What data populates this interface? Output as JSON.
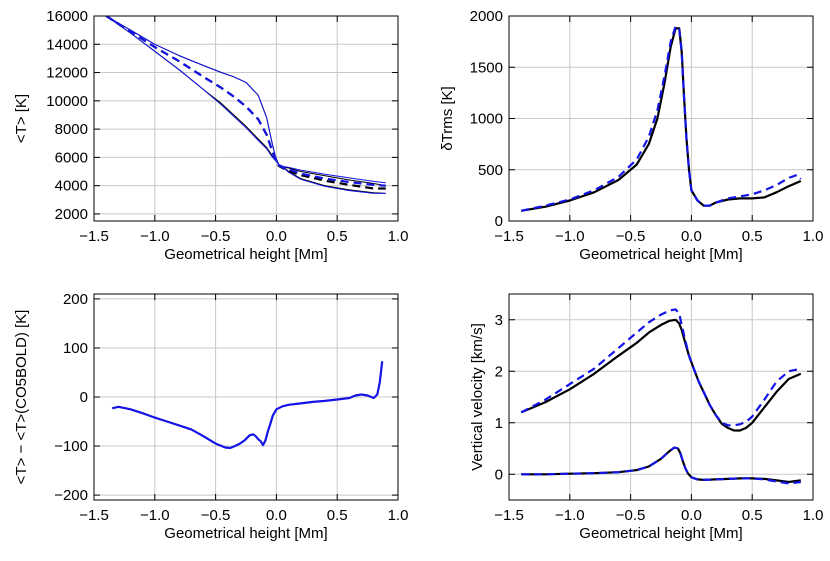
{
  "colors": {
    "black": "#000000",
    "blue": "#1414e6",
    "grid": "#c8c8c8"
  },
  "chart_data": [
    {
      "type": "line",
      "xlabel": "Geometrical height [Mm]",
      "ylabel": "<T> [K]",
      "xlim": [
        -1.5,
        1.0
      ],
      "ylim": [
        1500,
        16000
      ],
      "xticks": [
        -1.5,
        -1.0,
        -0.5,
        0.0,
        0.5,
        1.0
      ],
      "xtick_labels": [
        "−1.5",
        "−1.0",
        "−0.5",
        "0.0",
        "0.5",
        "1.0"
      ],
      "yticks": [
        2000,
        4000,
        6000,
        8000,
        10000,
        12000,
        14000,
        16000
      ],
      "ytick_labels": [
        "2000",
        "4000",
        "6000",
        "8000",
        "10000",
        "12000",
        "14000",
        "16000"
      ],
      "grid": true,
      "series": [
        {
          "color": "black",
          "style": "solid",
          "width": 1,
          "x": [
            -1.4,
            -1.2,
            -1.0,
            -0.8,
            -0.6,
            -0.45,
            -0.35,
            -0.25,
            -0.15,
            -0.08,
            -0.04,
            -0.01,
            0.02,
            0.06,
            0.1,
            0.2,
            0.4,
            0.6,
            0.8,
            0.9
          ],
          "y": [
            16000,
            15000,
            14000,
            13200,
            12500,
            12000,
            11700,
            11300,
            10400,
            8800,
            7200,
            6100,
            5450,
            5300,
            5250,
            5000,
            4700,
            4400,
            4150,
            4000
          ]
        },
        {
          "color": "black",
          "style": "solid",
          "width": 1,
          "x": [
            -1.4,
            -1.2,
            -1.0,
            -0.8,
            -0.6,
            -0.45,
            -0.35,
            -0.25,
            -0.15,
            -0.08,
            -0.04,
            0.0,
            0.02,
            0.06,
            0.1,
            0.2,
            0.4,
            0.6,
            0.8,
            0.9
          ],
          "y": [
            16000,
            14800,
            13500,
            12200,
            10800,
            9800,
            9000,
            8200,
            7300,
            6700,
            6200,
            5700,
            5500,
            5300,
            5000,
            4500,
            4000,
            3700,
            3500,
            3450
          ]
        },
        {
          "color": "blue",
          "style": "solid",
          "width": 1,
          "x": [
            -1.4,
            -1.2,
            -1.0,
            -0.8,
            -0.6,
            -0.45,
            -0.35,
            -0.25,
            -0.15,
            -0.08,
            -0.04,
            -0.01,
            0.02,
            0.06,
            0.1,
            0.2,
            0.4,
            0.6,
            0.8,
            0.9
          ],
          "y": [
            16000,
            15000,
            14000,
            13200,
            12500,
            12000,
            11700,
            11300,
            10400,
            8800,
            7200,
            6100,
            5500,
            5350,
            5300,
            5100,
            4800,
            4550,
            4300,
            4200
          ]
        },
        {
          "color": "blue",
          "style": "solid",
          "width": 1,
          "x": [
            -1.4,
            -1.2,
            -1.0,
            -0.8,
            -0.6,
            -0.45,
            -0.35,
            -0.25,
            -0.15,
            -0.08,
            -0.04,
            0.0,
            0.02,
            0.06,
            0.1,
            0.2,
            0.4,
            0.6,
            0.8,
            0.9
          ],
          "y": [
            16000,
            14800,
            13500,
            12200,
            10800,
            9700,
            8900,
            8100,
            7200,
            6600,
            6100,
            5700,
            5500,
            5250,
            4950,
            4450,
            3950,
            3650,
            3450,
            3450
          ]
        },
        {
          "color": "black",
          "style": "dashed",
          "width": 2.2,
          "x": [
            -1.4,
            -1.2,
            -1.0,
            -0.8,
            -0.6,
            -0.45,
            -0.35,
            -0.25,
            -0.15,
            -0.08,
            -0.04,
            -0.01,
            0.02,
            0.06,
            0.1,
            0.2,
            0.4,
            0.6,
            0.8,
            0.9
          ],
          "y": [
            16000,
            14900,
            13800,
            12800,
            11700,
            10900,
            10300,
            9600,
            8700,
            7600,
            6600,
            5900,
            5400,
            5200,
            5050,
            4750,
            4350,
            4050,
            3800,
            3800
          ]
        },
        {
          "color": "blue",
          "style": "dashed",
          "width": 2.2,
          "x": [
            -1.4,
            -1.2,
            -1.0,
            -0.8,
            -0.6,
            -0.45,
            -0.35,
            -0.25,
            -0.15,
            -0.08,
            -0.04,
            -0.01,
            0.02,
            0.06,
            0.1,
            0.2,
            0.4,
            0.6,
            0.8,
            0.9
          ],
          "y": [
            16000,
            14900,
            13800,
            12800,
            11700,
            10900,
            10300,
            9600,
            8700,
            7600,
            6600,
            5900,
            5450,
            5250,
            5150,
            4850,
            4500,
            4250,
            4050,
            4000
          ]
        }
      ]
    },
    {
      "type": "line",
      "xlabel": "Geometrical height [Mm]",
      "ylabel": "δTrms [K]",
      "xlim": [
        -1.5,
        1.0
      ],
      "ylim": [
        0,
        2000
      ],
      "xticks": [
        -1.5,
        -1.0,
        -0.5,
        0.0,
        0.5,
        1.0
      ],
      "xtick_labels": [
        "−1.5",
        "−1.0",
        "−0.5",
        "0.0",
        "0.5",
        "1.0"
      ],
      "yticks": [
        0,
        500,
        1000,
        1500,
        2000
      ],
      "ytick_labels": [
        "0",
        "500",
        "1000",
        "1500",
        "2000"
      ],
      "grid": true,
      "series": [
        {
          "color": "black",
          "style": "solid",
          "width": 2.2,
          "x": [
            -1.4,
            -1.2,
            -1.0,
            -0.8,
            -0.6,
            -0.45,
            -0.35,
            -0.28,
            -0.22,
            -0.17,
            -0.13,
            -0.1,
            -0.08,
            -0.06,
            -0.04,
            -0.02,
            0.0,
            0.05,
            0.1,
            0.15,
            0.2,
            0.3,
            0.4,
            0.5,
            0.6,
            0.7,
            0.8,
            0.9
          ],
          "y": [
            100,
            140,
            200,
            280,
            400,
            550,
            750,
            1000,
            1350,
            1700,
            1880,
            1880,
            1650,
            1200,
            800,
            500,
            300,
            200,
            150,
            150,
            180,
            210,
            220,
            220,
            230,
            280,
            340,
            390
          ]
        },
        {
          "color": "blue",
          "style": "dashed",
          "width": 2.2,
          "x": [
            -1.4,
            -1.2,
            -1.0,
            -0.8,
            -0.6,
            -0.45,
            -0.35,
            -0.28,
            -0.22,
            -0.17,
            -0.13,
            -0.1,
            -0.08,
            -0.06,
            -0.04,
            -0.02,
            0.0,
            0.05,
            0.1,
            0.15,
            0.2,
            0.3,
            0.4,
            0.5,
            0.6,
            0.7,
            0.8,
            0.87,
            0.9
          ],
          "y": [
            100,
            150,
            210,
            300,
            430,
            600,
            820,
            1080,
            1420,
            1750,
            1900,
            1880,
            1650,
            1200,
            800,
            500,
            300,
            200,
            150,
            150,
            180,
            220,
            240,
            260,
            300,
            350,
            420,
            450,
            410
          ]
        }
      ]
    },
    {
      "type": "line",
      "xlabel": "Geometrical height [Mm]",
      "ylabel": "<T> − <T>(CO5BOLD) [K]",
      "xlim": [
        -1.5,
        1.0
      ],
      "ylim": [
        -210,
        210
      ],
      "xticks": [
        -1.5,
        -1.0,
        -0.5,
        0.0,
        0.5,
        1.0
      ],
      "xtick_labels": [
        "−1.5",
        "−1.0",
        "−0.5",
        "0.0",
        "0.5",
        "1.0"
      ],
      "yticks": [
        -200,
        -100,
        0,
        100,
        200
      ],
      "ytick_labels": [
        "−200",
        "−100",
        "0",
        "100",
        "200"
      ],
      "grid": true,
      "series": [
        {
          "color": "blue",
          "style": "solid",
          "width": 2.2,
          "x": [
            -1.35,
            -1.3,
            -1.2,
            -1.1,
            -1.0,
            -0.9,
            -0.8,
            -0.7,
            -0.6,
            -0.5,
            -0.42,
            -0.38,
            -0.34,
            -0.3,
            -0.26,
            -0.22,
            -0.19,
            -0.17,
            -0.15,
            -0.13,
            -0.11,
            -0.09,
            -0.07,
            -0.05,
            -0.03,
            0.0,
            0.05,
            0.1,
            0.2,
            0.3,
            0.4,
            0.5,
            0.6,
            0.65,
            0.7,
            0.75,
            0.8,
            0.83,
            0.85,
            0.87
          ],
          "y": [
            -23,
            -20,
            -25,
            -33,
            -42,
            -50,
            -58,
            -66,
            -80,
            -95,
            -103,
            -104,
            -100,
            -95,
            -88,
            -78,
            -76,
            -80,
            -86,
            -90,
            -98,
            -88,
            -70,
            -55,
            -38,
            -25,
            -19,
            -16,
            -13,
            -10,
            -8,
            -5,
            -2,
            3,
            5,
            3,
            -2,
            5,
            30,
            73
          ]
        }
      ]
    },
    {
      "type": "line",
      "xlabel": "Geometrical height [Mm]",
      "ylabel": "Vertical velocity [km/s]",
      "xlim": [
        -1.5,
        1.0
      ],
      "ylim": [
        -0.5,
        3.5
      ],
      "xticks": [
        -1.5,
        -1.0,
        -0.5,
        0.0,
        0.5,
        1.0
      ],
      "xtick_labels": [
        "−1.5",
        "−1.0",
        "−0.5",
        "0.0",
        "0.5",
        "1.0"
      ],
      "yticks": [
        0,
        1,
        2,
        3
      ],
      "ytick_labels": [
        "0",
        "1",
        "2",
        "3"
      ],
      "grid": true,
      "series": [
        {
          "color": "black",
          "style": "solid",
          "width": 2.2,
          "x": [
            -1.4,
            -1.2,
            -1.0,
            -0.8,
            -0.6,
            -0.45,
            -0.35,
            -0.25,
            -0.18,
            -0.13,
            -0.1,
            -0.08,
            -0.05,
            -0.02,
            0.02,
            0.06,
            0.1,
            0.15,
            0.2,
            0.25,
            0.3,
            0.35,
            0.4,
            0.45,
            0.5,
            0.6,
            0.7,
            0.8,
            0.9
          ],
          "y": [
            1.2,
            1.4,
            1.65,
            1.95,
            2.3,
            2.55,
            2.75,
            2.9,
            2.98,
            3.0,
            2.93,
            2.8,
            2.55,
            2.3,
            2.05,
            1.8,
            1.6,
            1.35,
            1.15,
            0.98,
            0.9,
            0.85,
            0.85,
            0.9,
            1.0,
            1.3,
            1.6,
            1.85,
            1.95
          ]
        },
        {
          "color": "blue",
          "style": "dashed",
          "width": 2.2,
          "x": [
            -1.4,
            -1.2,
            -1.0,
            -0.8,
            -0.6,
            -0.45,
            -0.35,
            -0.25,
            -0.18,
            -0.13,
            -0.1,
            -0.08,
            -0.05,
            -0.02,
            0.02,
            0.06,
            0.1,
            0.15,
            0.2,
            0.25,
            0.3,
            0.35,
            0.4,
            0.45,
            0.5,
            0.6,
            0.7,
            0.8,
            0.9
          ],
          "y": [
            1.2,
            1.45,
            1.75,
            2.05,
            2.45,
            2.75,
            2.95,
            3.1,
            3.18,
            3.2,
            3.12,
            2.9,
            2.6,
            2.3,
            2.05,
            1.8,
            1.6,
            1.35,
            1.15,
            1.0,
            0.95,
            0.95,
            0.97,
            1.02,
            1.12,
            1.45,
            1.8,
            2.0,
            2.05
          ]
        },
        {
          "color": "black",
          "style": "solid",
          "width": 2.2,
          "x": [
            -1.4,
            -1.2,
            -1.0,
            -0.8,
            -0.6,
            -0.45,
            -0.35,
            -0.25,
            -0.18,
            -0.14,
            -0.11,
            -0.09,
            -0.07,
            -0.05,
            -0.03,
            0.0,
            0.05,
            0.1,
            0.2,
            0.3,
            0.4,
            0.5,
            0.6,
            0.7,
            0.8,
            0.9
          ],
          "y": [
            0.0,
            0.0,
            0.01,
            0.02,
            0.04,
            0.08,
            0.15,
            0.3,
            0.45,
            0.52,
            0.5,
            0.4,
            0.25,
            0.12,
            0.02,
            -0.06,
            -0.1,
            -0.11,
            -0.1,
            -0.09,
            -0.08,
            -0.08,
            -0.09,
            -0.12,
            -0.15,
            -0.12
          ]
        },
        {
          "color": "blue",
          "style": "dashed",
          "width": 2.2,
          "x": [
            -1.4,
            -1.2,
            -1.0,
            -0.8,
            -0.6,
            -0.45,
            -0.35,
            -0.25,
            -0.18,
            -0.14,
            -0.11,
            -0.09,
            -0.07,
            -0.05,
            -0.03,
            0.0,
            0.05,
            0.1,
            0.2,
            0.3,
            0.4,
            0.5,
            0.6,
            0.7,
            0.8,
            0.9
          ],
          "y": [
            0.0,
            0.0,
            0.01,
            0.02,
            0.04,
            0.08,
            0.15,
            0.3,
            0.45,
            0.52,
            0.5,
            0.4,
            0.25,
            0.12,
            0.02,
            -0.06,
            -0.1,
            -0.11,
            -0.1,
            -0.09,
            -0.08,
            -0.08,
            -0.1,
            -0.14,
            -0.18,
            -0.15
          ]
        }
      ]
    }
  ]
}
